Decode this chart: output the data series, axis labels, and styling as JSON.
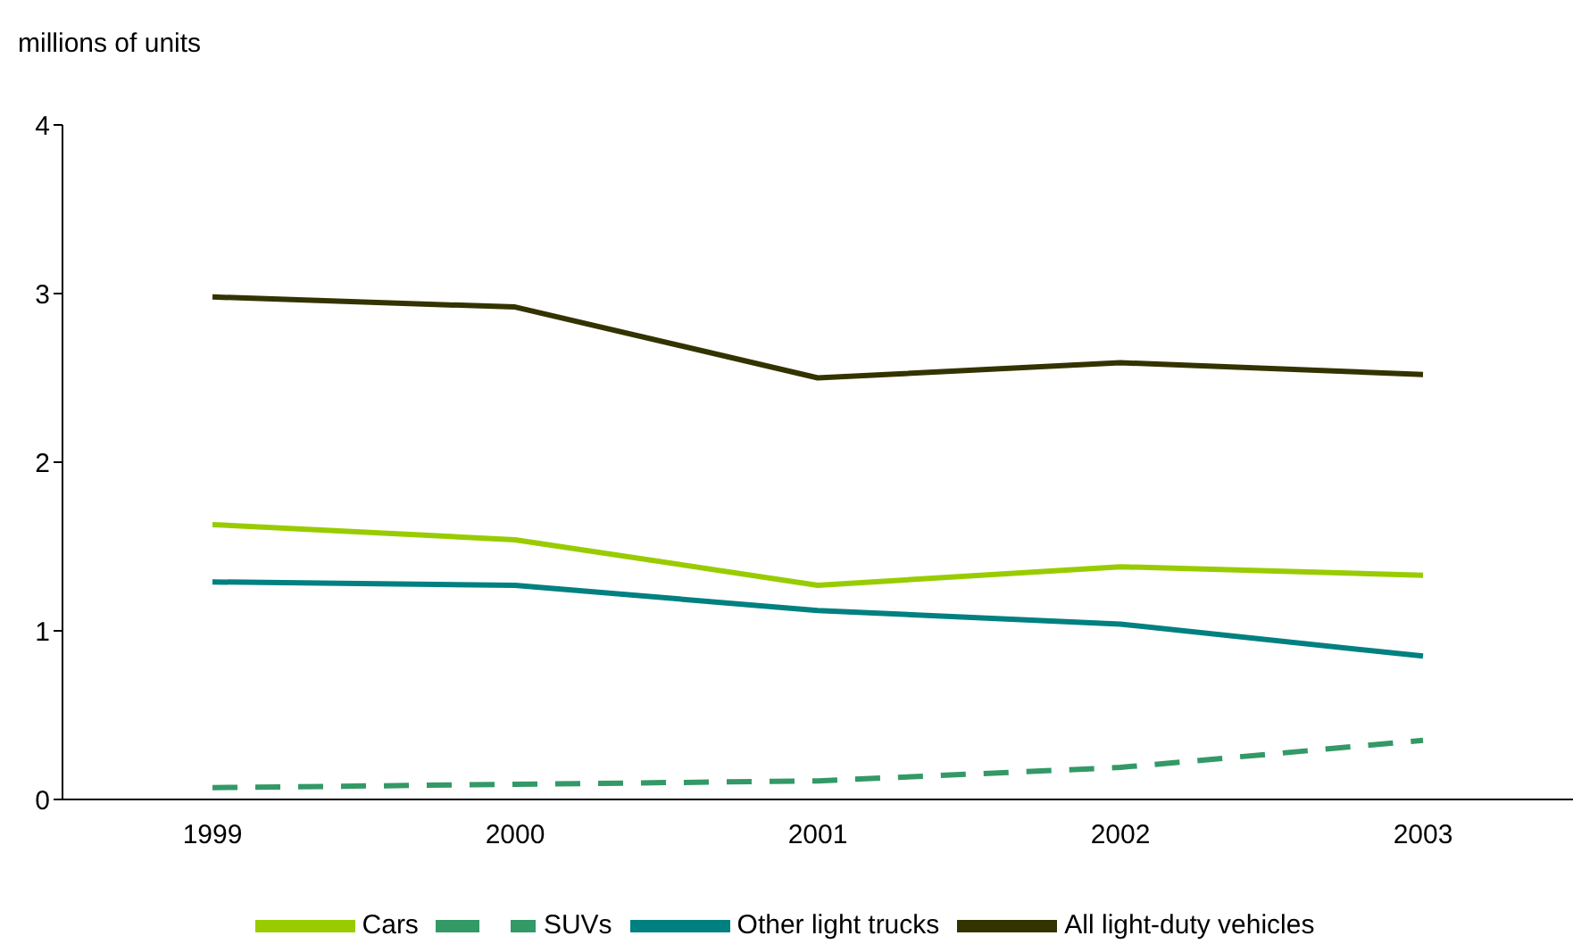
{
  "chart_data": {
    "type": "line",
    "ylabel": "millions of units",
    "categories": [
      "1999",
      "2000",
      "2001",
      "2002",
      "2003"
    ],
    "series": [
      {
        "name": "Cars",
        "color": "#99cc00",
        "values": [
          1.63,
          1.54,
          1.27,
          1.38,
          1.33
        ]
      },
      {
        "name": "SUVs",
        "color": "#339966",
        "line_style": "dashed",
        "values": [
          0.07,
          0.09,
          0.11,
          0.19,
          0.35
        ]
      },
      {
        "name": "Other light trucks",
        "color": "#008080",
        "values": [
          1.29,
          1.27,
          1.12,
          1.04,
          0.85
        ]
      },
      {
        "name": "All light-duty vehicles",
        "color": "#333300",
        "values": [
          2.98,
          2.92,
          2.5,
          2.59,
          2.52
        ]
      }
    ],
    "ylim": [
      0,
      4
    ],
    "yticks": [
      0,
      1,
      2,
      3,
      4
    ],
    "grid": false,
    "legend": "bottom",
    "marker": "none",
    "line_style": "solid"
  }
}
